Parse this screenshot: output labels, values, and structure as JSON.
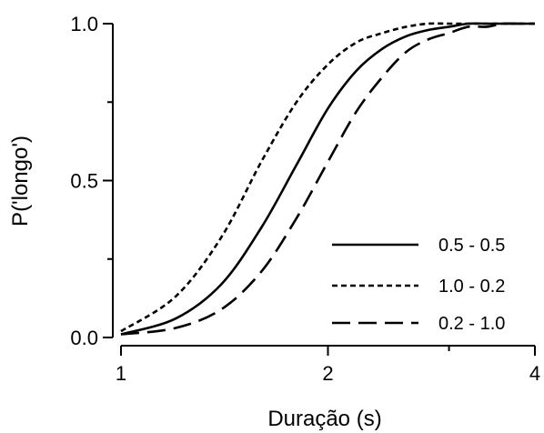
{
  "chart_data": {
    "type": "line",
    "title": "",
    "xlabel": "Duração (s)",
    "ylabel": "P('longo')",
    "x_scale": "log",
    "xlim": [
      1,
      4
    ],
    "ylim": [
      0,
      1
    ],
    "x_ticks": [
      1,
      2,
      4
    ],
    "x_tick_labels": [
      "1",
      "2",
      "4"
    ],
    "y_ticks": [
      0,
      0.5,
      1
    ],
    "y_tick_labels": [
      "0.0",
      "0.5",
      "1.0"
    ],
    "grid": false,
    "legend_position": "bottom-right",
    "x": [
      1.0,
      1.2,
      1.4,
      1.6,
      1.8,
      2.0,
      2.2,
      2.4,
      2.6,
      2.8,
      3.0,
      3.2,
      3.4,
      3.6,
      3.8,
      4.0
    ],
    "series": [
      {
        "name": "0.5 - 0.5",
        "line_style": "solid",
        "values": [
          0.01,
          0.06,
          0.17,
          0.35,
          0.55,
          0.73,
          0.85,
          0.92,
          0.96,
          0.98,
          0.99,
          1.0,
          1.0,
          1.0,
          1.0,
          1.0
        ]
      },
      {
        "name": "1.0 - 0.2",
        "line_style": "dotted",
        "values": [
          0.02,
          0.13,
          0.32,
          0.56,
          0.75,
          0.87,
          0.94,
          0.97,
          0.99,
          1.0,
          1.0,
          1.0,
          1.0,
          1.0,
          1.0,
          1.0
        ]
      },
      {
        "name": "0.2 - 1.0",
        "line_style": "dashed",
        "values": [
          0.01,
          0.03,
          0.09,
          0.21,
          0.38,
          0.56,
          0.72,
          0.83,
          0.91,
          0.95,
          0.97,
          0.99,
          0.99,
          1.0,
          1.0,
          1.0
        ]
      }
    ]
  }
}
